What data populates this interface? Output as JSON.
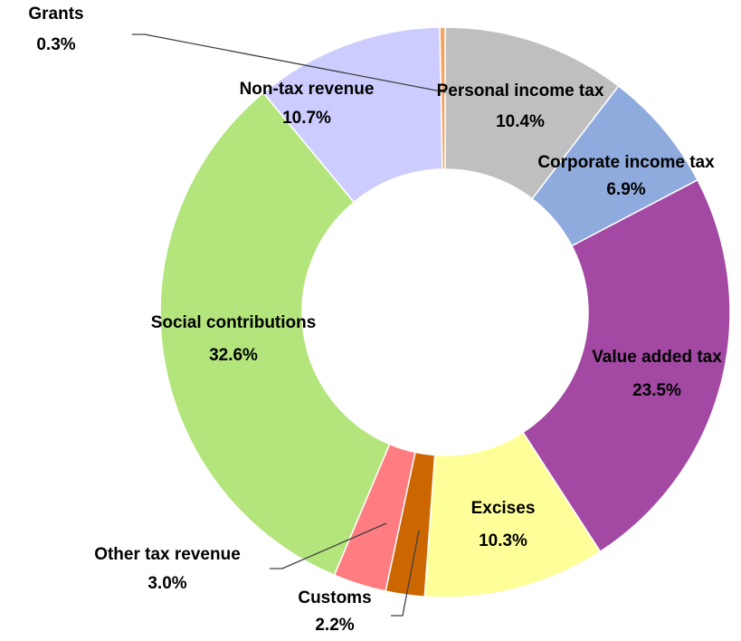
{
  "chart_data": {
    "type": "pie",
    "variant": "donut",
    "slices": [
      {
        "label": "Personal income tax",
        "value": 10.4,
        "value_label": "10.4%",
        "color": "#BFBFBF"
      },
      {
        "label": "Corporate income tax",
        "value": 6.9,
        "value_label": "6.9%",
        "color": "#8FAADC"
      },
      {
        "label": "Value added tax",
        "value": 23.5,
        "value_label": "23.5%",
        "color": "#A349A4"
      },
      {
        "label": "Excises",
        "value": 10.3,
        "value_label": "10.3%",
        "color": "#FFFF99"
      },
      {
        "label": "Customs",
        "value": 2.2,
        "value_label": "2.2%",
        "color": "#CC6600"
      },
      {
        "label": "Other tax revenue",
        "value": 3.0,
        "value_label": "3.0%",
        "color": "#FF7C80"
      },
      {
        "label": "Social contributions",
        "value": 32.6,
        "value_label": "32.6%",
        "color": "#B4E57C"
      },
      {
        "label": "Non-tax revenue",
        "value": 10.7,
        "value_label": "10.7%",
        "color": "#CCCCFF"
      },
      {
        "label": "Grants",
        "value": 0.3,
        "value_label": "0.3%",
        "color": "#F4A460"
      }
    ],
    "legend": "none",
    "start_angle": "12 o'clock",
    "direction": "clockwise"
  }
}
